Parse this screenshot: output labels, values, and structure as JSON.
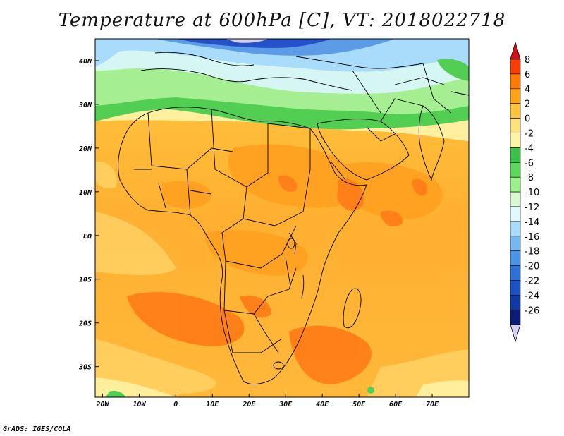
{
  "title": "Temperature at 600hPa [C], VT: 2018022718",
  "credit": "GrADS: IGES/COLA",
  "map": {
    "lon_range": [
      -22,
      80
    ],
    "lat_range": [
      -37,
      45
    ],
    "lon_ticks": [
      {
        "value": -20,
        "label": "20W"
      },
      {
        "value": -10,
        "label": "10W"
      },
      {
        "value": 0,
        "label": "0"
      },
      {
        "value": 10,
        "label": "10E"
      },
      {
        "value": 20,
        "label": "20E"
      },
      {
        "value": 30,
        "label": "30E"
      },
      {
        "value": 40,
        "label": "40E"
      },
      {
        "value": 50,
        "label": "50E"
      },
      {
        "value": 60,
        "label": "60E"
      },
      {
        "value": 70,
        "label": "70E"
      }
    ],
    "lat_ticks": [
      {
        "value": 40,
        "label": "40N"
      },
      {
        "value": 30,
        "label": "30N"
      },
      {
        "value": 20,
        "label": "20N"
      },
      {
        "value": 10,
        "label": "10N"
      },
      {
        "value": 0,
        "label": "EQ"
      },
      {
        "value": -10,
        "label": "10S"
      },
      {
        "value": -20,
        "label": "20S"
      },
      {
        "value": -30,
        "label": "30S"
      }
    ]
  },
  "colorbar": {
    "levels": [
      {
        "label": "8",
        "color": "#ff3d00"
      },
      {
        "label": "6",
        "color": "#ff7a00"
      },
      {
        "label": "4",
        "color": "#ffa318"
      },
      {
        "label": "2",
        "color": "#ffc43d"
      },
      {
        "label": "0",
        "color": "#ffe27a"
      },
      {
        "label": "-2",
        "color": "#fff3a6"
      },
      {
        "label": "-4",
        "color": "#39c24a"
      },
      {
        "label": "-6",
        "color": "#5cd95c"
      },
      {
        "label": "-8",
        "color": "#9af08a"
      },
      {
        "label": "-10",
        "color": "#d8f8d0"
      },
      {
        "label": "-12",
        "color": "#e0f8ff"
      },
      {
        "label": "-14",
        "color": "#a8dcfa"
      },
      {
        "label": "-16",
        "color": "#74b8f4"
      },
      {
        "label": "-18",
        "color": "#4a94e8"
      },
      {
        "label": "-20",
        "color": "#2c72d8"
      },
      {
        "label": "-22",
        "color": "#1b52c4"
      },
      {
        "label": "-24",
        "color": "#0e3aa8"
      },
      {
        "label": "-26",
        "color": "#0a1e78"
      }
    ],
    "top_cap_color": "#d41010",
    "bottom_cap_color": "#d4d0f4"
  },
  "colors": {
    "warm_base": "#ffb53a",
    "warm_hot": "#ff8a1a",
    "warm_mid": "#ffa428",
    "cool_light": "#fff0a0",
    "green": "#52cf52",
    "green_light": "#a6ee92",
    "cyan_light": "#d6f6f4",
    "blue_light": "#a8dcfa",
    "blue_mid": "#5c9ce6",
    "blue_dark": "#2552c8"
  }
}
